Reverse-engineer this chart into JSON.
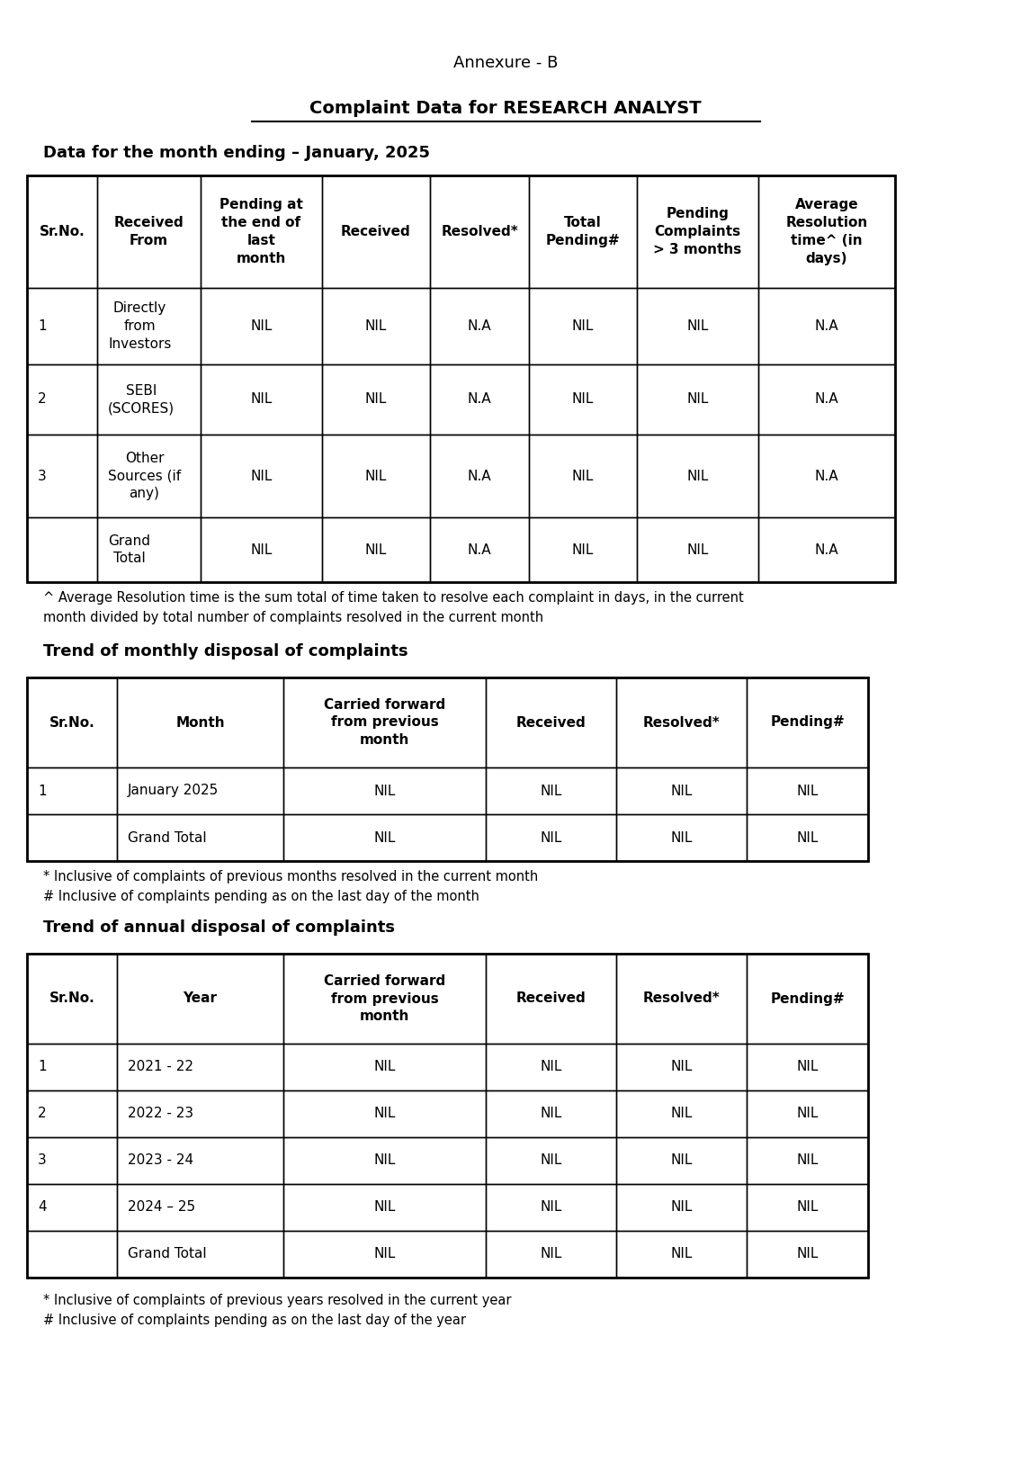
{
  "title1": "Annexure - B",
  "title2": "Complaint Data for RESEARCH ANALYST",
  "section1_title": "Data for the month ending – January, 2025",
  "table1_headers": [
    "Sr.No.",
    "Received\nFrom",
    "Pending at\nthe end of\nlast\nmonth",
    "Received",
    "Resolved*",
    "Total\nPending#",
    "Pending\nComplaints\n> 3 months",
    "Average\nResolution\ntime^ (in\ndays)"
  ],
  "table1_rows": [
    [
      "1",
      "Directly\nfrom\nInvestors",
      "NIL",
      "NIL",
      "N.A",
      "NIL",
      "NIL",
      "N.A"
    ],
    [
      "2",
      "SEBI\n(SCORES)",
      "NIL",
      "NIL",
      "N.A",
      "NIL",
      "NIL",
      "N.A"
    ],
    [
      "3",
      "Other\nSources (if\nany)",
      "NIL",
      "NIL",
      "N.A",
      "NIL",
      "NIL",
      "N.A"
    ],
    [
      "",
      "Grand\nTotal",
      "NIL",
      "NIL",
      "N.A",
      "NIL",
      "NIL",
      "N.A"
    ]
  ],
  "footnote1": "^ Average Resolution time is the sum total of time taken to resolve each complaint in days, in the current\nmonth divided by total number of complaints resolved in the current month",
  "section2_title": "Trend of monthly disposal of complaints",
  "table2_headers": [
    "Sr.No.",
    "Month",
    "Carried forward\nfrom previous\nmonth",
    "Received",
    "Resolved*",
    "Pending#"
  ],
  "table2_rows": [
    [
      "1",
      "January 2025",
      "NIL",
      "NIL",
      "NIL",
      "NIL"
    ],
    [
      "",
      "Grand Total",
      "NIL",
      "NIL",
      "NIL",
      "NIL"
    ]
  ],
  "footnote2": "* Inclusive of complaints of previous months resolved in the current month\n# Inclusive of complaints pending as on the last day of the month",
  "section3_title": "Trend of annual disposal of complaints",
  "table3_headers": [
    "Sr.No.",
    "Year",
    "Carried forward\nfrom previous\nmonth",
    "Received",
    "Resolved*",
    "Pending#"
  ],
  "table3_rows": [
    [
      "1",
      "2021 - 22",
      "NIL",
      "NIL",
      "NIL",
      "NIL"
    ],
    [
      "2",
      "2022 - 23",
      "NIL",
      "NIL",
      "NIL",
      "NIL"
    ],
    [
      "3",
      "2023 - 24",
      "NIL",
      "NIL",
      "NIL",
      "NIL"
    ],
    [
      "4",
      "2024 – 25",
      "NIL",
      "NIL",
      "NIL",
      "NIL"
    ],
    [
      "",
      "Grand Total",
      "NIL",
      "NIL",
      "NIL",
      "NIL"
    ]
  ],
  "footnote3": "* Inclusive of complaints of previous years resolved in the current year\n# Inclusive of complaints pending as on the last day of the year",
  "bg_color": "#ffffff",
  "text_color": "#000000",
  "border_color": "#000000",
  "figsize": [
    11.25,
    16.25
  ],
  "dpi": 100
}
